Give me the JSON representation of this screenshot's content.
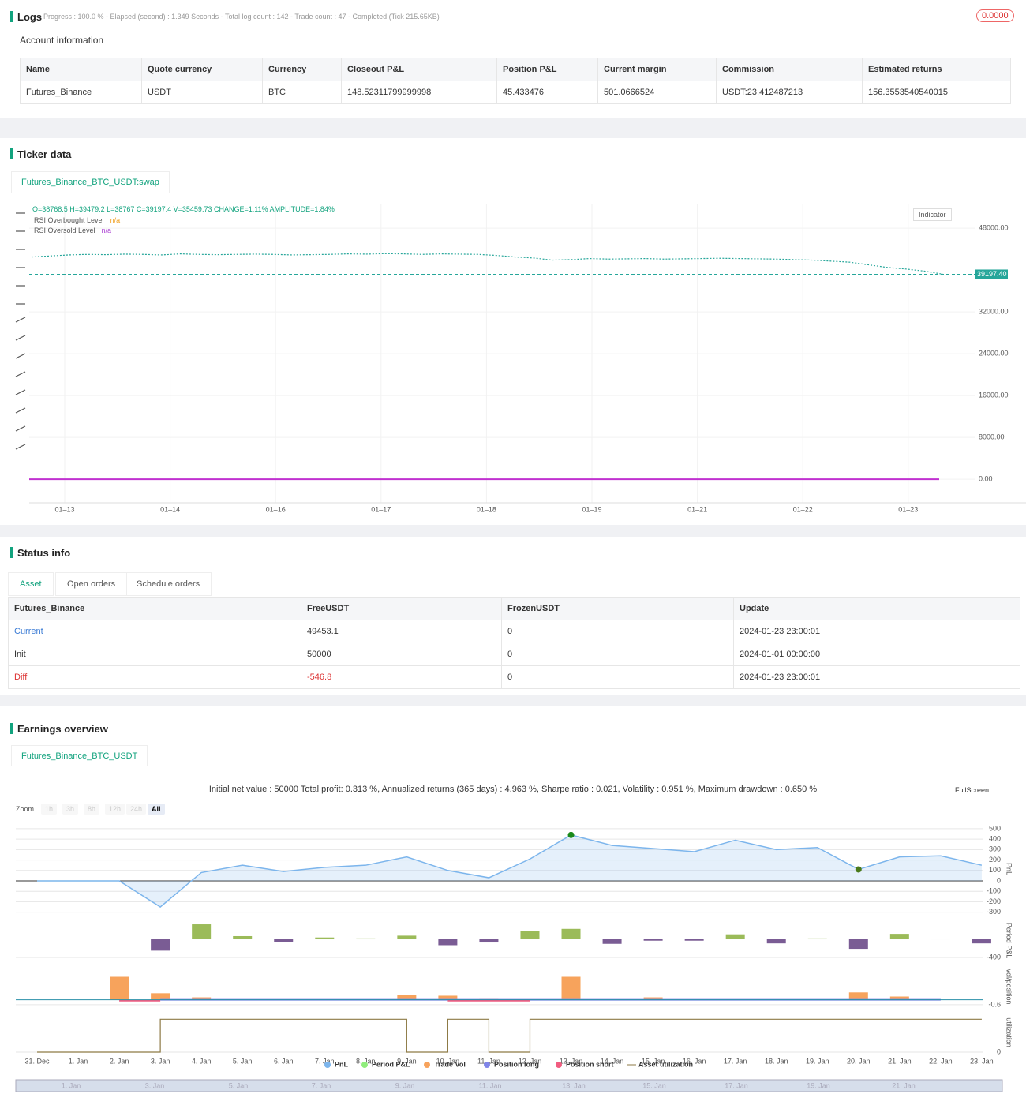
{
  "logs": {
    "title": "Logs",
    "progress": "Progress : 100.0 % - Elapsed (second) : 1.349  Seconds - Total log count : 142 - Trade count : 47 - Completed (Tick 215.65KB)",
    "badge": "0.0000"
  },
  "account": {
    "title": "Account information",
    "columns": [
      "Name",
      "Quote currency",
      "Currency",
      "Closeout P&L",
      "Position P&L",
      "Current margin",
      "Commission",
      "Estimated returns"
    ],
    "rows": [
      [
        "Futures_Binance",
        "USDT",
        "BTC",
        "148.52311799999998",
        "45.433476",
        "501.0666524",
        "USDT:23.412487213",
        "156.3553540540015"
      ]
    ]
  },
  "ticker": {
    "title": "Ticker data",
    "tab": "Futures_Binance_BTC_USDT:swap",
    "ohlc": "O=38768.5 H=39479.2 L=38767 C=39197.4 V=35459.73 CHANGE=1.11% AMPLITUDE=1.84%",
    "legend": [
      {
        "name": "RSI Overbought Level",
        "value": "n/a"
      },
      {
        "name": "RSI Oversold Level",
        "value": "n/a"
      }
    ],
    "indicator": "Indicator",
    "chart": {
      "type": "line",
      "categories": [
        "01–13",
        "01–14",
        "01–16",
        "01–17",
        "01–18",
        "01–19",
        "01–21",
        "01–22",
        "01–23"
      ],
      "ylim": [
        -4500,
        52700
      ],
      "yticks": [
        {
          "value": 48000,
          "label": "48000.00"
        },
        {
          "value": 32000,
          "label": "32000.00"
        },
        {
          "value": 24000,
          "label": "24000.00"
        },
        {
          "value": 16000,
          "label": "16000.00"
        },
        {
          "value": 8000,
          "label": "8000.00"
        },
        {
          "value": 0,
          "label": "0.00"
        }
      ],
      "last_price": {
        "value": 39197.4,
        "label": "39197.40"
      },
      "series": [
        {
          "name": "BTC_USDT",
          "color": "#26a69a",
          "values": [
            42500,
            42700,
            42900,
            43000,
            42950,
            43050,
            43000,
            42900,
            43100,
            43000,
            42950,
            43000,
            43050,
            43000,
            42900,
            42950,
            43000,
            43100,
            43050,
            43150,
            43100,
            43000,
            43100,
            43050,
            43000,
            42800,
            42500,
            42300,
            41900,
            42000,
            42200,
            42100,
            42150,
            42200,
            42100,
            42150,
            42200,
            42250,
            42200,
            42150,
            42100,
            42000,
            41900,
            41700,
            41500,
            41000,
            40500,
            40200,
            39800,
            39197.4
          ]
        }
      ]
    }
  },
  "status": {
    "title": "Status info",
    "tabs": [
      "Asset",
      "Open orders",
      "Schedule orders"
    ],
    "columns": [
      "Futures_Binance",
      "FreeUSDT",
      "FrozenUSDT",
      "Update"
    ],
    "rows": [
      [
        "Current",
        "49453.1",
        "0",
        "2024-01-23 23:00:01"
      ],
      [
        "Init",
        "50000",
        "0",
        "2024-01-01 00:00:00"
      ],
      [
        "Diff",
        "-546.8",
        "0",
        "2024-01-23 23:00:01"
      ]
    ]
  },
  "earnings": {
    "title": "Earnings overview",
    "tab": "Futures_Binance_BTC_USDT",
    "summary": "Initial net value : 50000 Total profit: 0.313 %, Annualized returns (365 days) : 4.963 %, Sharpe ratio : 0.021, Volatility : 0.951 %, Maximum drawdown : 0.650 %",
    "zoom_label": "Zoom",
    "zoom": [
      "1h",
      "3h",
      "8h",
      "12h",
      "24h",
      "All"
    ],
    "fullscreen": "FullScreen",
    "chart": {
      "type": "line",
      "categories": [
        "31. Dec",
        "1. Jan",
        "2. Jan",
        "3. Jan",
        "4. Jan",
        "5. Jan",
        "6. Jan",
        "7. Jan",
        "8. Jan",
        "9. Jan",
        "10. Jan",
        "11. Jan",
        "12. Jan",
        "13. Jan",
        "14. Jan",
        "15. Jan",
        "16. Jan",
        "17. Jan",
        "18. Jan",
        "19. Jan",
        "20. Jan",
        "21. Jan",
        "22. Jan",
        "23. Jan"
      ],
      "pnl": {
        "name": "PnL",
        "color": "#7cb5ec",
        "axis_title": "PnL",
        "ylim": [
          -333,
          560
        ],
        "yticks": [
          500,
          400,
          300,
          200,
          100,
          0,
          -100,
          -200,
          -300
        ],
        "values": [
          0,
          0,
          0,
          -250,
          80,
          150,
          90,
          130,
          150,
          230,
          100,
          30,
          210,
          440,
          340,
          310,
          280,
          390,
          300,
          320,
          110,
          230,
          240,
          150
        ]
      },
      "period": {
        "name": "Period P&L",
        "color": "#90ed7d",
        "axis_title": "Period P&L",
        "ylim": [
          -487,
          435
        ],
        "yticks": [
          -400
        ],
        "values": [
          0,
          0,
          0,
          -250,
          330,
          70,
          -60,
          40,
          20,
          80,
          -130,
          -70,
          180,
          230,
          -100,
          -30,
          -30,
          110,
          -90,
          20,
          -210,
          120,
          10,
          -90
        ]
      },
      "vol": {
        "axis_title": "vol/position",
        "ylim": [
          -0.8,
          4
        ],
        "yticks": [
          -0.6
        ],
        "series": [
          {
            "name": "Trade Vol",
            "color": "#f7a35c",
            "values": [
              0,
              0,
              2.8,
              0.8,
              0.3,
              0,
              0,
              0,
              0,
              0.6,
              0.5,
              0.1,
              0,
              2.8,
              0,
              0.3,
              0,
              0,
              0,
              0,
              0.9,
              0.4,
              0,
              0
            ]
          },
          {
            "name": "Position long",
            "color": "#8085e9",
            "values": [
              null,
              null,
              null,
              0,
              0,
              0,
              0,
              0,
              0,
              0,
              0,
              0,
              0,
              0,
              0,
              0,
              0,
              0,
              0,
              0,
              0,
              0,
              0,
              null
            ]
          },
          {
            "name": "Position short",
            "color": "#f15c80",
            "values": [
              null,
              null,
              -0.1,
              -0.1,
              null,
              null,
              null,
              null,
              null,
              null,
              -0.1,
              -0.1,
              -0.1,
              null,
              null,
              null,
              null,
              null,
              null,
              null,
              null,
              null,
              null,
              null
            ]
          }
        ]
      },
      "util": {
        "name": "Asset utilization",
        "color": "#8d7a45",
        "axis_title": "utilization",
        "ylim": [
          0,
          1.2
        ],
        "yticks": [
          0
        ],
        "values": [
          0,
          0,
          0,
          1,
          1,
          1,
          1,
          1,
          1,
          0,
          1,
          0,
          1,
          1,
          1,
          1,
          1,
          1,
          1,
          1,
          1,
          1,
          1,
          1
        ]
      }
    },
    "navigator": [
      "1. Jan",
      "3. Jan",
      "5. Jan",
      "7. Jan",
      "9. Jan",
      "11. Jan",
      "13. Jan",
      "15. Jan",
      "17. Jan",
      "19. Jan",
      "21. Jan"
    ]
  }
}
